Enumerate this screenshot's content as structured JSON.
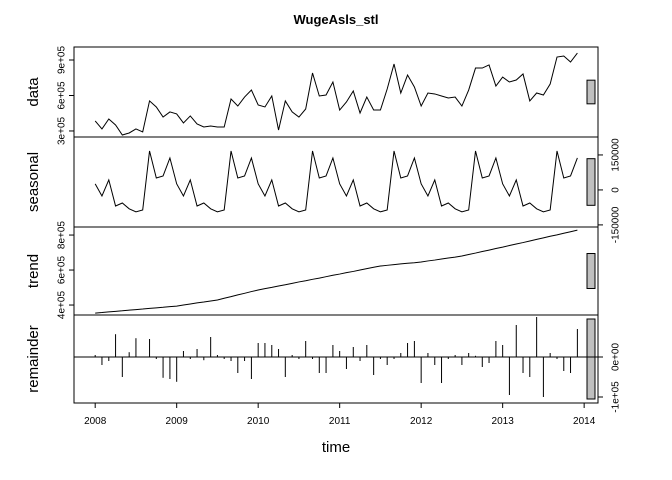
{
  "chart_data": {
    "type": "stl",
    "title": "WugeAsls_stl",
    "x_label": "time",
    "xlim": [
      2007.74,
      2014.17
    ],
    "xticks": [
      2008,
      2009,
      2010,
      2011,
      2012,
      2013,
      2014
    ],
    "x": [
      2008,
      2008.083,
      2008.167,
      2008.25,
      2008.333,
      2008.417,
      2008.5,
      2008.583,
      2008.667,
      2008.75,
      2008.833,
      2008.917,
      2009,
      2009.083,
      2009.167,
      2009.25,
      2009.333,
      2009.417,
      2009.5,
      2009.583,
      2009.667,
      2009.75,
      2009.833,
      2009.917,
      2010,
      2010.083,
      2010.167,
      2010.25,
      2010.333,
      2010.417,
      2010.5,
      2010.583,
      2010.667,
      2010.75,
      2010.833,
      2010.917,
      2011,
      2011.083,
      2011.167,
      2011.25,
      2011.333,
      2011.417,
      2011.5,
      2011.583,
      2011.667,
      2011.75,
      2011.833,
      2011.917,
      2012,
      2012.083,
      2012.167,
      2012.25,
      2012.333,
      2012.417,
      2012.5,
      2012.583,
      2012.667,
      2012.75,
      2012.833,
      2012.917,
      2013,
      2013.083,
      2013.167,
      2013.25,
      2013.333,
      2013.417,
      2013.5,
      2013.583,
      2013.667,
      2013.75,
      2013.833,
      2013.917
    ],
    "panels": [
      {
        "label": "data",
        "style": "line",
        "axis_side": "left",
        "ylim": [
          249000,
          1010000
        ],
        "yticks": [
          {
            "value": 300000,
            "label": "3e+05"
          },
          {
            "value": 600000,
            "label": "6e+05"
          },
          {
            "value": 900000,
            "label": "9e+05"
          }
        ],
        "values": [
          385000,
          317000,
          401000,
          351000,
          266000,
          283000,
          317000,
          292000,
          554000,
          503000,
          418000,
          461000,
          444000,
          368000,
          427000,
          359000,
          334000,
          342000,
          334000,
          334000,
          570000,
          511000,
          587000,
          646000,
          520000,
          503000,
          596000,
          308000,
          554000,
          461000,
          418000,
          486000,
          790000,
          596000,
          604000,
          714000,
          477000,
          545000,
          638000,
          452000,
          587000,
          477000,
          477000,
          655000,
          866000,
          621000,
          773000,
          672000,
          511000,
          621000,
          613000,
          596000,
          579000,
          587000,
          511000,
          646000,
          832000,
          832000,
          858000,
          680000,
          756000,
          714000,
          731000,
          782000,
          554000,
          621000,
          604000,
          697000,
          925000,
          934000,
          883000,
          959000
        ]
      },
      {
        "label": "seasonal",
        "style": "line",
        "axis_side": "right",
        "ylim": [
          -159000,
          227000
        ],
        "yticks": [
          -150000,
          0,
          150000
        ],
        "values": [
          26000,
          -26000,
          43000,
          -69000,
          -56000,
          -81000,
          -94000,
          -86000,
          167000,
          51000,
          60000,
          137000,
          26000,
          -26000,
          43000,
          -69000,
          -56000,
          -81000,
          -94000,
          -86000,
          167000,
          51000,
          60000,
          137000,
          26000,
          -26000,
          43000,
          -69000,
          -56000,
          -81000,
          -94000,
          -86000,
          167000,
          51000,
          60000,
          137000,
          26000,
          -26000,
          43000,
          -69000,
          -56000,
          -81000,
          -94000,
          -86000,
          167000,
          51000,
          60000,
          137000,
          26000,
          -26000,
          43000,
          -69000,
          -56000,
          -81000,
          -94000,
          -86000,
          167000,
          51000,
          60000,
          137000,
          26000,
          -26000,
          43000,
          -69000,
          -56000,
          -81000,
          -94000,
          -86000,
          167000,
          51000,
          60000,
          137000
        ]
      },
      {
        "label": "trend",
        "style": "line",
        "axis_side": "left",
        "ylim": [
          343000,
          846000
        ],
        "yticks": [
          {
            "value": 400000,
            "label": "4e+05"
          },
          {
            "value": 600000,
            "label": "6e+05"
          },
          {
            "value": 800000,
            "label": "8e+05"
          }
        ],
        "values": [
          354000,
          357000,
          361000,
          364000,
          367000,
          371000,
          374000,
          377000,
          381000,
          384000,
          387000,
          391000,
          394000,
          400000,
          406000,
          412000,
          417000,
          423000,
          429000,
          439000,
          448000,
          458000,
          467000,
          477000,
          486000,
          494000,
          501000,
          509000,
          516000,
          524000,
          532000,
          539000,
          547000,
          554000,
          562000,
          570000,
          577000,
          585000,
          592000,
          600000,
          608000,
          616000,
          623000,
          627000,
          631000,
          635000,
          639000,
          642000,
          646000,
          652000,
          657000,
          663000,
          669000,
          674000,
          680000,
          689000,
          697000,
          706000,
          714000,
          723000,
          731000,
          740000,
          749000,
          757000,
          766000,
          775000,
          784000,
          793000,
          801000,
          810000,
          819000,
          828000
        ]
      },
      {
        "label": "remainder",
        "style": "bars",
        "axis_side": "right",
        "ylim": [
          -115000,
          105000
        ],
        "yticks": [
          {
            "value": -100000,
            "label": "-1e+05"
          },
          {
            "value": 0,
            "label": "0e+00"
          }
        ],
        "values": [
          5000,
          -20000,
          -10000,
          57000,
          -50000,
          12000,
          47000,
          0,
          45000,
          -5000,
          -52000,
          -55000,
          -62000,
          15000,
          -5000,
          20000,
          -8000,
          50000,
          5000,
          -5000,
          -10000,
          -40000,
          -10000,
          -55000,
          35000,
          35000,
          30000,
          20000,
          -50000,
          5000,
          -5000,
          40000,
          -5000,
          -40000,
          -40000,
          30000,
          15000,
          -30000,
          25000,
          -10000,
          30000,
          -45000,
          -5000,
          -20000,
          -5000,
          10000,
          35000,
          40000,
          -65000,
          10000,
          -20000,
          -65000,
          -5000,
          5000,
          -20000,
          10000,
          3000,
          -25000,
          -15000,
          40000,
          30000,
          -95000,
          80000,
          -40000,
          -50000,
          100000,
          -100000,
          10000,
          -5000,
          -35000,
          -40000,
          70000
        ]
      }
    ]
  }
}
